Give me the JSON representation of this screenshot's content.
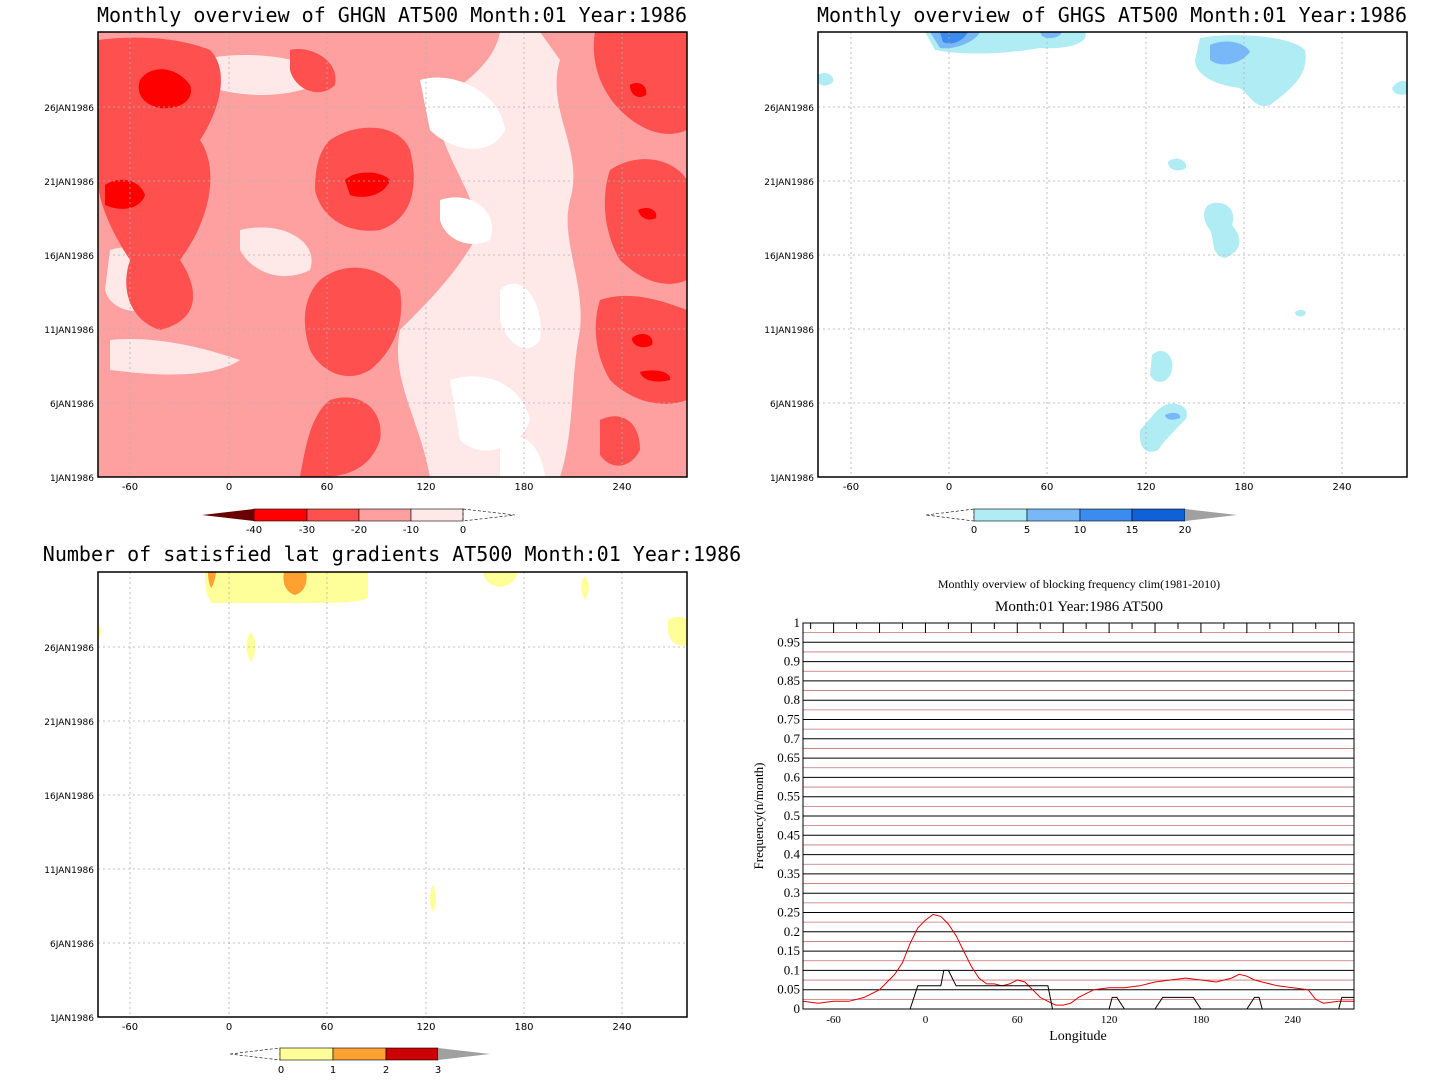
{
  "panels": {
    "ghgn": {
      "title": "Monthly overview of GHGN AT500 Month:01 Year:1986",
      "xticks": [
        "-60",
        "0",
        "60",
        "120",
        "180",
        "240"
      ],
      "yticks": [
        "1JAN1986",
        "6JAN1986",
        "11JAN1986",
        "16JAN1986",
        "21JAN1986",
        "26JAN1986"
      ],
      "colorbar": {
        "labels": [
          "-40",
          "-30",
          "-20",
          "-10",
          "0"
        ],
        "colors": [
          "#ff0000",
          "#ff5050",
          "#ffa0a0",
          "#ffe8e8"
        ],
        "under_color": "#6a0000"
      }
    },
    "ghgs": {
      "title": "Monthly overview of GHGS AT500 Month:01 Year:1986",
      "xticks": [
        "-60",
        "0",
        "60",
        "120",
        "180",
        "240"
      ],
      "yticks": [
        "1JAN1986",
        "6JAN1986",
        "11JAN1986",
        "16JAN1986",
        "21JAN1986",
        "26JAN1986"
      ],
      "colorbar": {
        "labels": [
          "0",
          "5",
          "10",
          "15",
          "20"
        ],
        "colors": [
          "#b0ecf4",
          "#78b8f8",
          "#3c8cf0",
          "#1060d8"
        ],
        "over_color": "#a0a0a0"
      }
    },
    "lat_gradients": {
      "title": "Number of satisfied lat gradients AT500 Month:01 Year:1986",
      "xticks": [
        "-60",
        "0",
        "60",
        "120",
        "180",
        "240"
      ],
      "yticks": [
        "1JAN1986",
        "6JAN1986",
        "11JAN1986",
        "16JAN1986",
        "21JAN1986",
        "26JAN1986"
      ],
      "colorbar": {
        "labels": [
          "0",
          "1",
          "2",
          "3"
        ],
        "colors": [
          "#ffff99",
          "#ffa030",
          "#cc0000"
        ],
        "over_color": "#a0a0a0"
      }
    },
    "frequency": {
      "title": "Monthly overview of blocking frequency clim(1981-2010)",
      "subtitle": "Month:01 Year:1986  AT500",
      "xlabel": "Longitude",
      "ylabel": "Frequency(n/month)",
      "xticks": [
        "-60",
        "0",
        "60",
        "120",
        "180",
        "240"
      ],
      "yticks": [
        "0",
        "0.05",
        "0.1",
        "0.15",
        "0.2",
        "0.25",
        "0.3",
        "0.35",
        "0.4",
        "0.45",
        "0.5",
        "0.55",
        "0.6",
        "0.65",
        "0.7",
        "0.75",
        "0.8",
        "0.85",
        "0.9",
        "0.95",
        "1"
      ]
    }
  },
  "chart_data": [
    {
      "type": "heatmap",
      "title": "Monthly overview of GHGN AT500 Month:01 Year:1986",
      "x_range": [
        -75,
        285
      ],
      "y_range": [
        "1JAN1986",
        "31JAN1986"
      ],
      "levels": [
        -40,
        -30,
        -20,
        -10,
        0
      ],
      "colors": [
        "#ff0000",
        "#ff5050",
        "#ffa0a0",
        "#ffe8e8"
      ]
    },
    {
      "type": "heatmap",
      "title": "Monthly overview of GHGS AT500 Month:01 Year:1986",
      "x_range": [
        -75,
        285
      ],
      "y_range": [
        "1JAN1986",
        "31JAN1986"
      ],
      "levels": [
        0,
        5,
        10,
        15,
        20
      ],
      "colors": [
        "#b0ecf4",
        "#78b8f8",
        "#3c8cf0",
        "#1060d8"
      ]
    },
    {
      "type": "heatmap",
      "title": "Number of satisfied lat gradients AT500 Month:01 Year:1986",
      "x_range": [
        -75,
        285
      ],
      "y_range": [
        "1JAN1986",
        "31JAN1986"
      ],
      "levels": [
        0,
        1,
        2,
        3
      ],
      "colors": [
        "#ffff99",
        "#ffa030",
        "#cc0000"
      ]
    },
    {
      "type": "line",
      "title": "Monthly overview of blocking frequency clim(1981-2010)",
      "subtitle": "Month:01 Year:1986  AT500",
      "xlabel": "Longitude",
      "ylabel": "Frequency(n/month)",
      "xlim": [
        -80,
        280
      ],
      "ylim": [
        0,
        1
      ],
      "series": [
        {
          "color": "#e00000",
          "x": [
            -80,
            -70,
            -60,
            -50,
            -40,
            -30,
            -20,
            -15,
            -10,
            -5,
            0,
            5,
            10,
            15,
            20,
            25,
            30,
            35,
            40,
            45,
            50,
            55,
            60,
            65,
            70,
            75,
            80,
            85,
            90,
            95,
            100,
            110,
            120,
            130,
            140,
            150,
            160,
            170,
            180,
            190,
            200,
            205,
            210,
            215,
            220,
            230,
            240,
            250,
            255,
            260,
            270,
            280
          ],
          "y": [
            0.02,
            0.015,
            0.02,
            0.02,
            0.03,
            0.05,
            0.09,
            0.12,
            0.17,
            0.21,
            0.23,
            0.245,
            0.24,
            0.22,
            0.19,
            0.15,
            0.11,
            0.08,
            0.065,
            0.065,
            0.06,
            0.065,
            0.075,
            0.07,
            0.05,
            0.03,
            0.02,
            0.01,
            0.01,
            0.015,
            0.03,
            0.05,
            0.055,
            0.055,
            0.06,
            0.07,
            0.075,
            0.08,
            0.075,
            0.07,
            0.08,
            0.09,
            0.085,
            0.075,
            0.07,
            0.06,
            0.055,
            0.05,
            0.025,
            0.015,
            0.02,
            0.02
          ]
        },
        {
          "color": "#000000",
          "x": [
            -80,
            -70,
            -10,
            -5,
            5,
            10,
            12,
            15,
            20,
            60,
            65,
            80,
            83,
            100,
            110,
            120,
            122,
            125,
            130,
            150,
            155,
            165,
            175,
            180,
            200,
            210,
            215,
            218,
            220,
            270,
            272,
            280
          ],
          "y": [
            0,
            0,
            0,
            0.06,
            0.06,
            0.06,
            0.1,
            0.1,
            0.06,
            0.06,
            0.06,
            0.06,
            0,
            0,
            0,
            0,
            0.03,
            0.03,
            0,
            0,
            0.03,
            0.03,
            0.03,
            0,
            0,
            0,
            0.03,
            0.03,
            0,
            0,
            0.03,
            0.03
          ]
        }
      ]
    }
  ]
}
